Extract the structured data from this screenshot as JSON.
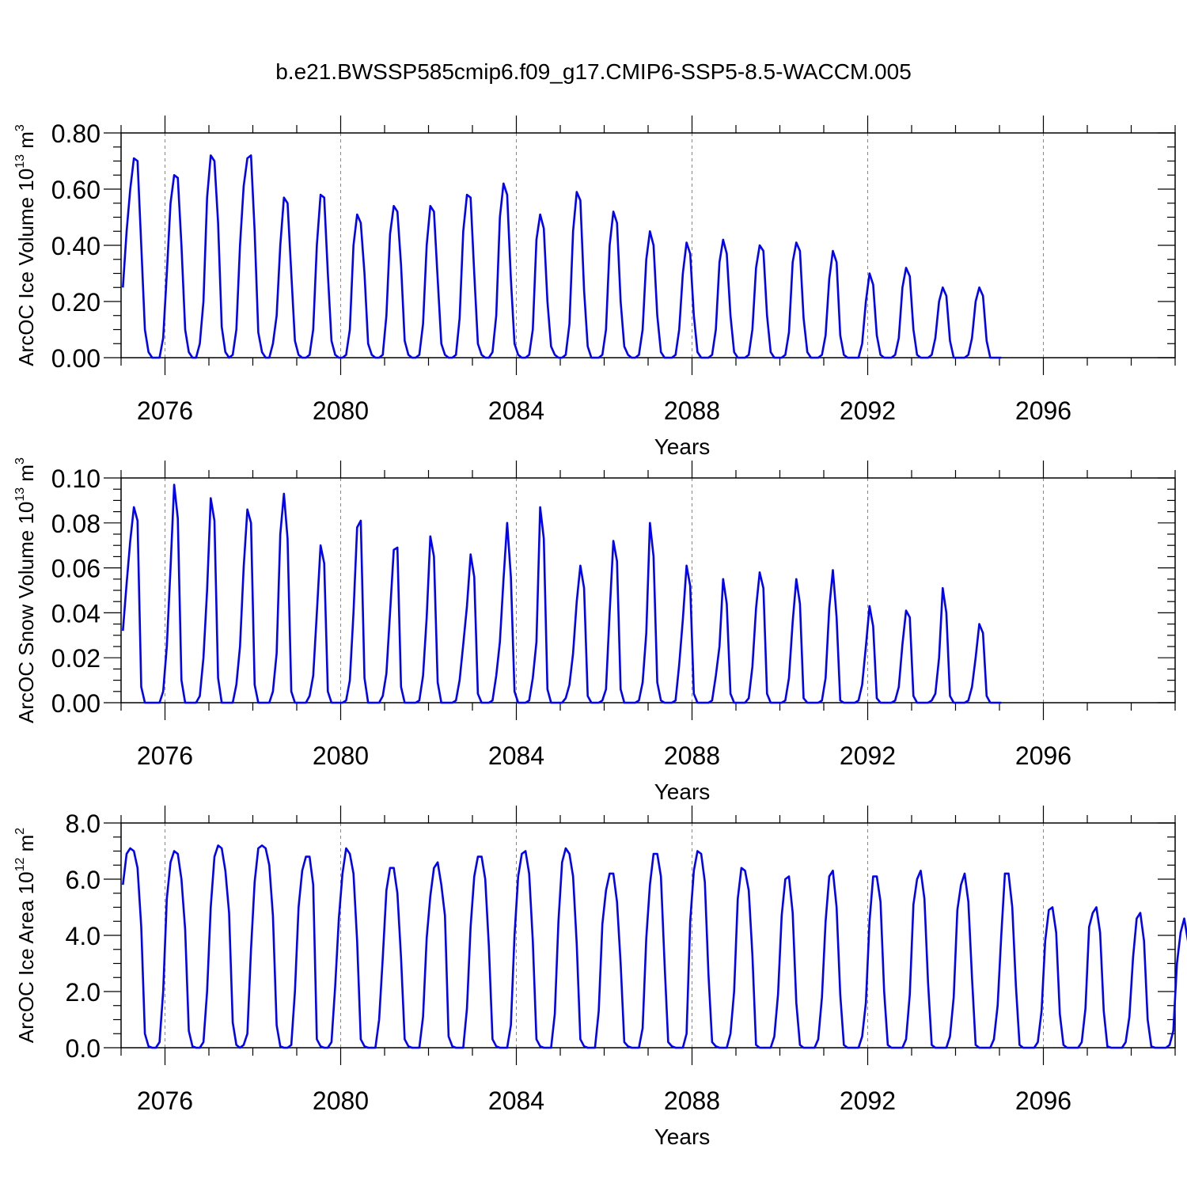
{
  "figure_title": "b.e21.BWSSP585cmip6.f09_g17.CMIP6-SSP5-8.5-WACCM.005",
  "line_color": "#0000ff",
  "chart_data": [
    {
      "type": "line",
      "ylabel": "ArcOC Ice Volume 10",
      "ylabel_exp": "13",
      "ylabel_unit": " m",
      "ylabel_unit_exp": "3",
      "xlabel": "Years",
      "xlim": [
        2075,
        2099
      ],
      "ylim": [
        0,
        0.8
      ],
      "yticks": [
        "0.00",
        "0.20",
        "0.40",
        "0.60",
        "0.80"
      ],
      "xticks": [
        "2076",
        "2080",
        "2084",
        "2088",
        "2092",
        "2096"
      ],
      "grid": "vertical dashed at labelled years",
      "x_start": 2075.042,
      "x_step": 0.08333,
      "values": [
        0.25,
        0.45,
        0.6,
        0.71,
        0.7,
        0.4,
        0.1,
        0.02,
        0.0,
        0.0,
        0.0,
        0.07,
        0.3,
        0.55,
        0.65,
        0.64,
        0.4,
        0.1,
        0.02,
        0.0,
        0.0,
        0.05,
        0.2,
        0.57,
        0.72,
        0.7,
        0.48,
        0.11,
        0.02,
        0.0,
        0.01,
        0.1,
        0.4,
        0.61,
        0.71,
        0.72,
        0.45,
        0.09,
        0.02,
        0.0,
        0.0,
        0.05,
        0.15,
        0.4,
        0.57,
        0.55,
        0.3,
        0.06,
        0.01,
        0.0,
        0.0,
        0.01,
        0.1,
        0.4,
        0.58,
        0.57,
        0.3,
        0.06,
        0.01,
        0.0,
        0.0,
        0.01,
        0.1,
        0.4,
        0.51,
        0.48,
        0.3,
        0.05,
        0.01,
        0.0,
        0.0,
        0.01,
        0.15,
        0.44,
        0.54,
        0.52,
        0.33,
        0.06,
        0.01,
        0.0,
        0.0,
        0.01,
        0.12,
        0.4,
        0.54,
        0.52,
        0.28,
        0.05,
        0.01,
        0.0,
        0.0,
        0.01,
        0.14,
        0.45,
        0.58,
        0.57,
        0.3,
        0.05,
        0.01,
        0.0,
        0.0,
        0.02,
        0.15,
        0.5,
        0.62,
        0.58,
        0.28,
        0.05,
        0.01,
        0.0,
        0.0,
        0.01,
        0.1,
        0.42,
        0.51,
        0.46,
        0.2,
        0.04,
        0.01,
        0.0,
        0.0,
        0.01,
        0.12,
        0.45,
        0.59,
        0.56,
        0.24,
        0.04,
        0.0,
        0.0,
        0.0,
        0.01,
        0.1,
        0.4,
        0.52,
        0.48,
        0.2,
        0.04,
        0.01,
        0.0,
        0.0,
        0.01,
        0.1,
        0.35,
        0.45,
        0.4,
        0.15,
        0.02,
        0.0,
        0.0,
        0.0,
        0.01,
        0.1,
        0.3,
        0.41,
        0.37,
        0.15,
        0.02,
        0.0,
        0.0,
        0.0,
        0.01,
        0.1,
        0.34,
        0.42,
        0.37,
        0.15,
        0.02,
        0.0,
        0.0,
        0.0,
        0.01,
        0.1,
        0.32,
        0.4,
        0.38,
        0.15,
        0.02,
        0.0,
        0.0,
        0.0,
        0.01,
        0.09,
        0.34,
        0.41,
        0.38,
        0.14,
        0.02,
        0.0,
        0.0,
        0.0,
        0.01,
        0.08,
        0.28,
        0.38,
        0.34,
        0.08,
        0.01,
        0.0,
        0.0,
        0.0,
        0.0,
        0.05,
        0.2,
        0.3,
        0.26,
        0.08,
        0.01,
        0.0,
        0.0,
        0.0,
        0.01,
        0.07,
        0.25,
        0.32,
        0.29,
        0.1,
        0.01,
        0.0,
        0.0,
        0.0,
        0.01,
        0.07,
        0.2,
        0.25,
        0.22,
        0.06,
        0.0,
        0.0,
        0.0,
        0.0,
        0.01,
        0.07,
        0.2,
        0.25,
        0.22,
        0.06,
        0.0,
        0.0,
        0.0,
        0.0
      ]
    },
    {
      "type": "line",
      "ylabel": "ArcOC Snow Volume 10",
      "ylabel_exp": "13",
      "ylabel_unit": " m",
      "ylabel_unit_exp": "3",
      "xlabel": "Years",
      "xlim": [
        2075,
        2099
      ],
      "ylim": [
        0,
        0.1
      ],
      "yticks": [
        "0.00",
        "0.02",
        "0.04",
        "0.06",
        "0.08",
        "0.10"
      ],
      "xticks": [
        "2076",
        "2080",
        "2084",
        "2088",
        "2092",
        "2096"
      ],
      "grid": "vertical dashed at labelled years",
      "x_start": 2075.042,
      "x_step": 0.08333,
      "values": [
        0.032,
        0.053,
        0.072,
        0.087,
        0.081,
        0.007,
        0.0,
        0.0,
        0.0,
        0.0,
        0.0,
        0.005,
        0.025,
        0.06,
        0.097,
        0.082,
        0.01,
        0.0,
        0.0,
        0.0,
        0.0,
        0.003,
        0.02,
        0.05,
        0.091,
        0.081,
        0.011,
        0.0,
        0.0,
        0.0,
        0.0,
        0.008,
        0.025,
        0.06,
        0.086,
        0.08,
        0.008,
        0.0,
        0.0,
        0.0,
        0.0,
        0.005,
        0.022,
        0.075,
        0.093,
        0.073,
        0.005,
        0.0,
        0.0,
        0.0,
        0.0,
        0.003,
        0.012,
        0.04,
        0.07,
        0.062,
        0.005,
        0.0,
        0.0,
        0.0,
        0.0,
        0.001,
        0.01,
        0.04,
        0.078,
        0.081,
        0.011,
        0.0,
        0.0,
        0.0,
        0.0,
        0.003,
        0.013,
        0.04,
        0.068,
        0.069,
        0.007,
        0.0,
        0.0,
        0.0,
        0.0,
        0.001,
        0.012,
        0.038,
        0.074,
        0.065,
        0.009,
        0.0,
        0.0,
        0.0,
        0.0,
        0.001,
        0.01,
        0.026,
        0.043,
        0.066,
        0.056,
        0.004,
        0.0,
        0.0,
        0.0,
        0.001,
        0.012,
        0.027,
        0.055,
        0.08,
        0.056,
        0.005,
        0.0,
        0.0,
        0.0,
        0.001,
        0.011,
        0.027,
        0.087,
        0.073,
        0.006,
        0.0,
        0.0,
        0.0,
        0.0,
        0.002,
        0.008,
        0.022,
        0.045,
        0.061,
        0.051,
        0.003,
        0.0,
        0.0,
        0.0,
        0.001,
        0.006,
        0.04,
        0.072,
        0.063,
        0.006,
        0.0,
        0.0,
        0.0,
        0.0,
        0.001,
        0.009,
        0.031,
        0.08,
        0.065,
        0.009,
        0.001,
        0.0,
        0.0,
        0.0,
        0.001,
        0.017,
        0.037,
        0.061,
        0.052,
        0.004,
        0.0,
        0.0,
        0.0,
        0.0,
        0.001,
        0.012,
        0.025,
        0.055,
        0.044,
        0.004,
        0.0,
        0.0,
        0.0,
        0.0,
        0.002,
        0.016,
        0.042,
        0.058,
        0.051,
        0.004,
        0.0,
        0.0,
        0.0,
        0.0,
        0.001,
        0.011,
        0.036,
        0.055,
        0.044,
        0.002,
        0.0,
        0.0,
        0.0,
        0.0,
        0.001,
        0.011,
        0.042,
        0.059,
        0.038,
        0.001,
        0.0,
        0.0,
        0.0,
        0.0,
        0.001,
        0.008,
        0.025,
        0.043,
        0.034,
        0.002,
        0.0,
        0.0,
        0.0,
        0.0,
        0.001,
        0.007,
        0.026,
        0.041,
        0.038,
        0.003,
        0.0,
        0.0,
        0.0,
        0.0,
        0.001,
        0.004,
        0.02,
        0.051,
        0.04,
        0.003,
        0.0,
        0.0,
        0.0,
        0.0,
        0.001,
        0.007,
        0.02,
        0.035,
        0.031,
        0.003,
        0.0,
        0.0,
        0.0,
        0.0
      ]
    },
    {
      "type": "line",
      "ylabel": "ArcOC Ice Area 10",
      "ylabel_exp": "12",
      "ylabel_unit": " m",
      "ylabel_unit_exp": "2",
      "xlabel": "Years",
      "xlim": [
        2075,
        2099
      ],
      "ylim": [
        0,
        8
      ],
      "yticks": [
        "0.0",
        "2.0",
        "4.0",
        "6.0",
        "8.0"
      ],
      "xticks": [
        "2076",
        "2080",
        "2084",
        "2088",
        "2092",
        "2096"
      ],
      "grid": "vertical dashed at labelled years",
      "x_start": 2075.042,
      "x_step": 0.08333,
      "values": [
        5.8,
        6.9,
        7.1,
        7.0,
        6.4,
        4.3,
        0.5,
        0.05,
        0.0,
        0.0,
        0.2,
        2.0,
        5.3,
        6.6,
        7.0,
        6.9,
        6.0,
        4.2,
        0.6,
        0.05,
        0.0,
        0.0,
        0.2,
        2.0,
        5.0,
        6.8,
        7.2,
        7.1,
        6.3,
        4.8,
        0.9,
        0.1,
        0.0,
        0.1,
        0.5,
        3.5,
        5.9,
        7.1,
        7.2,
        7.1,
        6.5,
        4.7,
        0.8,
        0.05,
        0.0,
        0.0,
        0.1,
        2.0,
        5.0,
        6.3,
        6.8,
        6.8,
        5.8,
        0.3,
        0.05,
        0.0,
        0.0,
        0.2,
        2.2,
        4.6,
        6.2,
        7.1,
        6.9,
        6.2,
        3.8,
        0.3,
        0.05,
        0.0,
        0.0,
        0.0,
        1.0,
        3.2,
        5.6,
        6.4,
        6.4,
        5.5,
        3.2,
        0.3,
        0.05,
        0.0,
        0.0,
        0.0,
        1.1,
        3.9,
        5.4,
        6.4,
        6.6,
        5.8,
        4.7,
        0.4,
        0.05,
        0.0,
        0.0,
        0.0,
        1.4,
        4.3,
        6.1,
        6.8,
        6.8,
        6.0,
        3.6,
        0.3,
        0.05,
        0.0,
        0.0,
        0.0,
        0.8,
        4.0,
        6.1,
        6.9,
        7.0,
        6.2,
        3.8,
        0.3,
        0.05,
        0.0,
        0.0,
        0.0,
        1.2,
        4.5,
        6.6,
        7.1,
        6.9,
        6.1,
        3.7,
        0.3,
        0.05,
        0.0,
        0.0,
        0.0,
        1.3,
        4.4,
        5.6,
        6.2,
        6.2,
        5.2,
        3.0,
        0.2,
        0.05,
        0.0,
        0.0,
        0.0,
        0.7,
        3.9,
        5.8,
        6.9,
        6.9,
        6.1,
        3.0,
        0.2,
        0.05,
        0.0,
        0.0,
        0.0,
        0.5,
        4.5,
        6.3,
        7.0,
        6.9,
        5.9,
        2.6,
        0.2,
        0.05,
        0.0,
        0.0,
        0.0,
        0.5,
        2.0,
        5.3,
        6.4,
        6.3,
        5.6,
        3.3,
        0.1,
        0.0,
        0.0,
        0.0,
        0.0,
        0.4,
        1.9,
        4.7,
        6.0,
        6.1,
        4.8,
        1.6,
        0.1,
        0.0,
        0.0,
        0.0,
        0.0,
        0.3,
        1.8,
        4.5,
        6.1,
        6.3,
        5.0,
        1.9,
        0.1,
        0.0,
        0.0,
        0.0,
        0.0,
        0.4,
        1.6,
        4.5,
        6.1,
        6.1,
        5.2,
        2.0,
        0.1,
        0.0,
        0.0,
        0.0,
        0.0,
        0.3,
        1.9,
        5.1,
        6.0,
        6.3,
        5.3,
        2.3,
        0.1,
        0.0,
        0.0,
        0.0,
        0.0,
        0.4,
        1.8,
        4.9,
        5.8,
        6.2,
        5.2,
        2.5,
        0.1,
        0.0,
        0.0,
        0.0,
        0.0,
        0.3,
        1.5,
        4.0,
        6.2,
        6.2,
        5.0,
        2.2,
        0.1,
        0.0,
        0.0,
        0.0,
        0.0,
        0.2,
        1.3,
        3.8,
        4.9,
        5.0,
        4.1,
        1.2,
        0.1,
        0.0,
        0.0,
        0.0,
        0.0,
        0.2,
        1.4,
        4.3,
        4.8,
        5.0,
        4.1,
        1.3,
        0.05,
        0.0,
        0.0,
        0.0,
        0.0,
        0.2,
        1.1,
        3.2,
        4.6,
        4.8,
        3.8,
        1.0,
        0.05,
        0.0,
        0.0,
        0.0,
        0.0,
        0.1,
        0.6,
        3.0,
        4.1,
        4.6,
        3.8,
        1.0,
        0.05,
        0.0,
        0.0,
        0.0,
        0.0,
        0.1
      ]
    }
  ]
}
